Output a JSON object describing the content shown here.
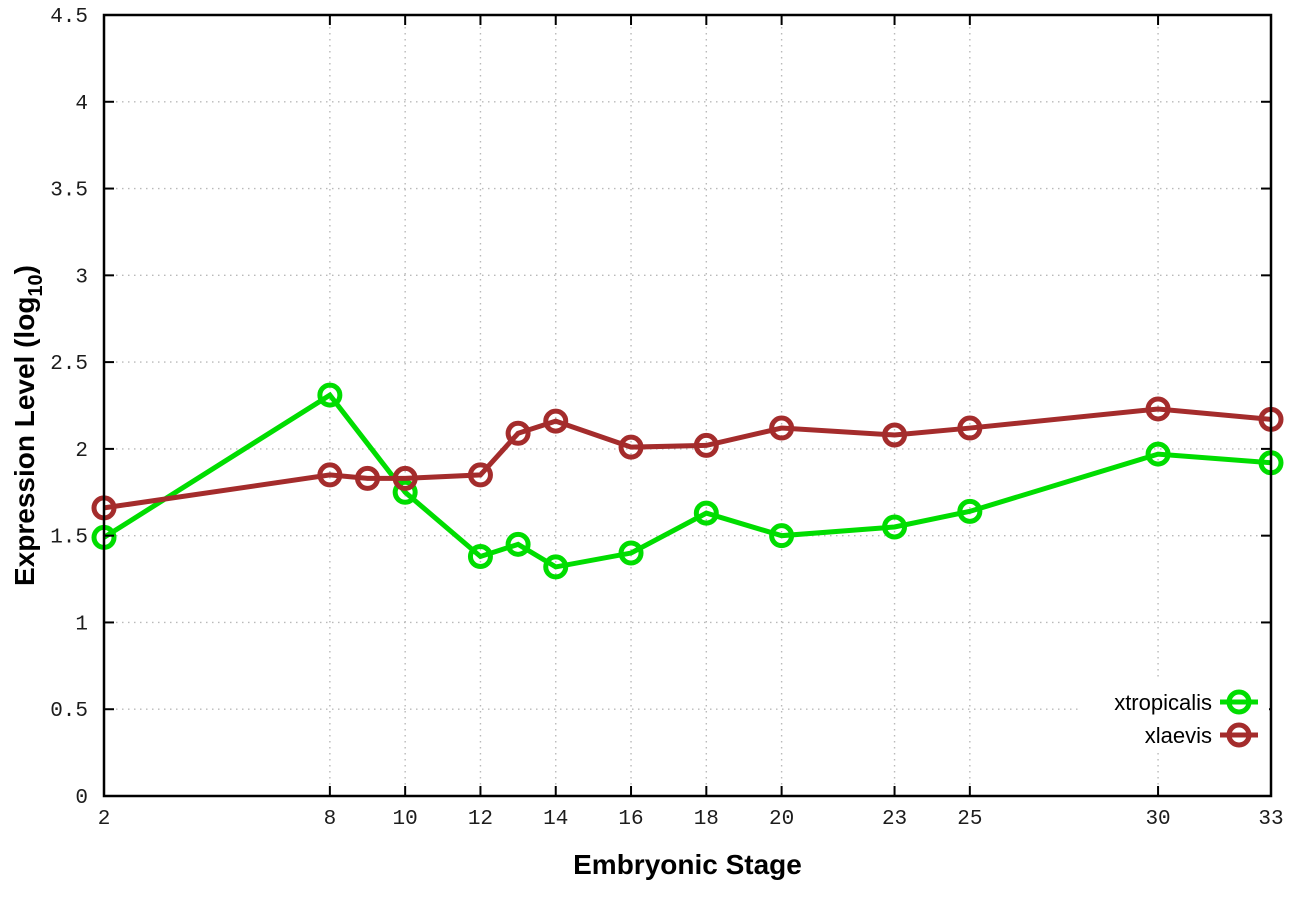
{
  "figure": {
    "background": "#ffffff",
    "border_color": "#000000",
    "grid_color": "#b9b9b9",
    "tick_color": "#000000"
  },
  "chart_data": {
    "type": "line",
    "title": "",
    "xlabel": "Embryonic Stage",
    "ylabel": "Expression Level (log10)",
    "ylabel_parts": {
      "prefix": "Expression Level (log",
      "sub": "10",
      "suffix": ")"
    },
    "xlim": [
      2,
      33
    ],
    "ylim": [
      0,
      4.5
    ],
    "grid": true,
    "grid_style": "dotted",
    "legend_position": "inside bottom-right",
    "x_ticks": [
      2,
      8,
      10,
      12,
      14,
      16,
      18,
      20,
      23,
      25,
      30,
      33
    ],
    "x_tick_labels": [
      "2",
      "8",
      "10",
      "12",
      "14",
      "16",
      "18",
      "20",
      "23",
      "25",
      "30",
      "33"
    ],
    "y_ticks": [
      0,
      0.5,
      1,
      1.5,
      2,
      2.5,
      3,
      3.5,
      4,
      4.5
    ],
    "y_tick_labels": [
      "0",
      "0.5",
      "1",
      "1.5",
      "2",
      "2.5",
      "3",
      "3.5",
      "4",
      "4.5"
    ],
    "series": [
      {
        "name": "xtropicalis",
        "color": "#00dd00",
        "marker": "open-circle",
        "x": [
          2,
          8,
          10,
          12,
          13,
          14,
          16,
          18,
          20,
          23,
          25,
          30,
          33
        ],
        "y": [
          1.49,
          2.31,
          1.75,
          1.38,
          1.45,
          1.32,
          1.4,
          1.63,
          1.5,
          1.55,
          1.64,
          1.97,
          1.92
        ]
      },
      {
        "name": "xlaevis",
        "color": "#a42c2c",
        "marker": "open-circle",
        "x": [
          2,
          8,
          9,
          10,
          12,
          13,
          14,
          16,
          18,
          20,
          23,
          25,
          30,
          33
        ],
        "y": [
          1.66,
          1.85,
          1.83,
          1.83,
          1.85,
          2.09,
          2.16,
          2.01,
          2.02,
          2.12,
          2.08,
          2.12,
          2.23,
          2.17
        ]
      }
    ]
  }
}
